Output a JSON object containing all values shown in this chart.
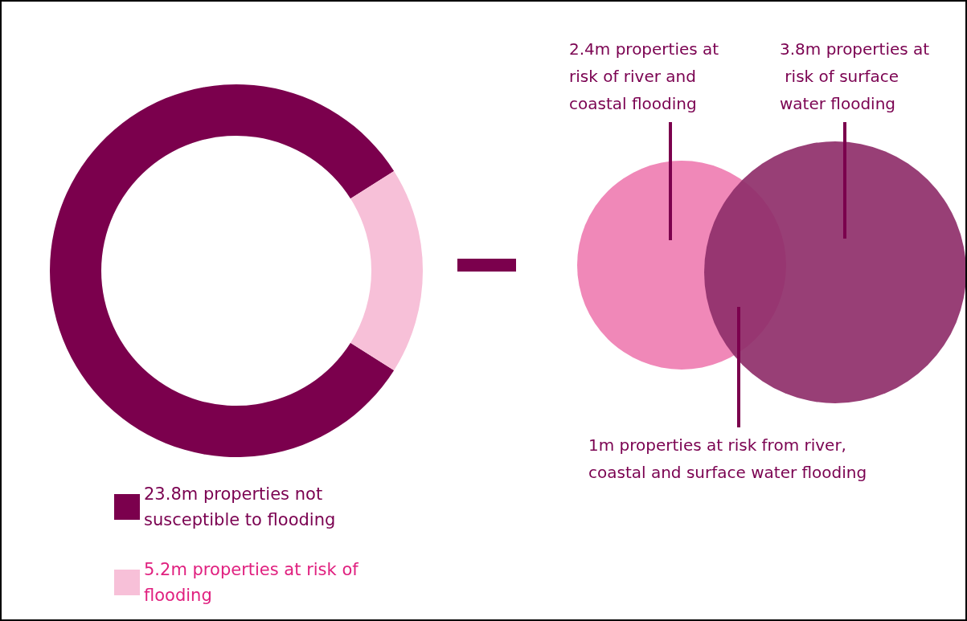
{
  "chart_data": [
    {
      "type": "donut",
      "categories": [
        "23.8m properties not susceptible to flooding",
        "5.2m properties at risk of flooding"
      ],
      "values": [
        23.8,
        5.2
      ],
      "colors": [
        "#7b004d",
        "#f7c0d8"
      ],
      "legend": "bottom left"
    },
    {
      "type": "other",
      "annotations": [
        "2.4m properties at risk of river and coastal flooding",
        "3.8m properties at risk of surface water flooding",
        "1m properties at risk from river, coastal and surface water flooding"
      ]
    }
  ]
}
